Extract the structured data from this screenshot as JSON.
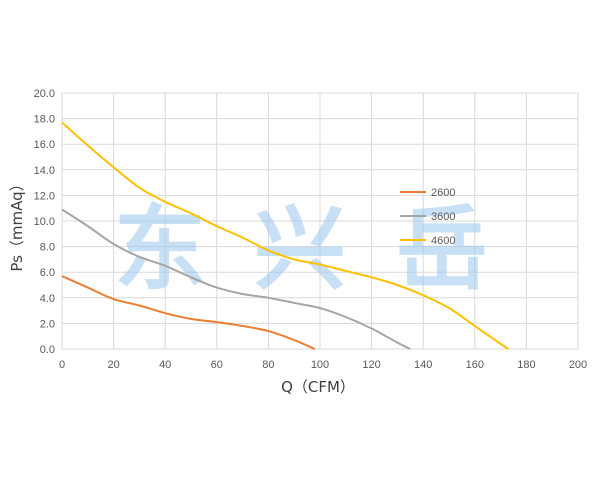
{
  "chart_data": {
    "type": "line",
    "xlabel": "Q（CFM）",
    "ylabel": "Ps（mmAq）",
    "xlim": [
      0,
      200
    ],
    "ylim": [
      0,
      20
    ],
    "x_ticks": [
      "0",
      "20",
      "40",
      "60",
      "80",
      "100",
      "120",
      "140",
      "160",
      "180",
      "200"
    ],
    "y_ticks": [
      "0.0",
      "2.0",
      "4.0",
      "6.0",
      "8.0",
      "10.0",
      "12.0",
      "14.0",
      "16.0",
      "18.0",
      "20.0"
    ],
    "grid": true,
    "legend_position": "right",
    "watermark": "东 兴 岳",
    "series": [
      {
        "name": "2600",
        "color": "#ed7d31",
        "points": [
          [
            0,
            5.7
          ],
          [
            10,
            4.8
          ],
          [
            20,
            3.9
          ],
          [
            30,
            3.4
          ],
          [
            40,
            2.8
          ],
          [
            50,
            2.35
          ],
          [
            60,
            2.1
          ],
          [
            70,
            1.8
          ],
          [
            80,
            1.4
          ],
          [
            90,
            0.7
          ],
          [
            98,
            0.0
          ]
        ]
      },
      {
        "name": "3600",
        "color": "#a5a5a5",
        "points": [
          [
            0,
            10.9
          ],
          [
            10,
            9.6
          ],
          [
            20,
            8.2
          ],
          [
            30,
            7.2
          ],
          [
            40,
            6.5
          ],
          [
            50,
            5.6
          ],
          [
            60,
            4.8
          ],
          [
            70,
            4.3
          ],
          [
            80,
            4.0
          ],
          [
            90,
            3.6
          ],
          [
            100,
            3.2
          ],
          [
            110,
            2.5
          ],
          [
            120,
            1.6
          ],
          [
            130,
            0.5
          ],
          [
            135,
            0.0
          ]
        ]
      },
      {
        "name": "4600",
        "color": "#ffc000",
        "points": [
          [
            0,
            17.7
          ],
          [
            10,
            15.9
          ],
          [
            20,
            14.2
          ],
          [
            30,
            12.6
          ],
          [
            40,
            11.5
          ],
          [
            50,
            10.6
          ],
          [
            60,
            9.6
          ],
          [
            70,
            8.7
          ],
          [
            80,
            7.7
          ],
          [
            90,
            7.0
          ],
          [
            100,
            6.6
          ],
          [
            110,
            6.1
          ],
          [
            120,
            5.6
          ],
          [
            130,
            5.0
          ],
          [
            140,
            4.2
          ],
          [
            150,
            3.2
          ],
          [
            160,
            1.8
          ],
          [
            170,
            0.4
          ],
          [
            173,
            0.0
          ]
        ]
      }
    ]
  }
}
